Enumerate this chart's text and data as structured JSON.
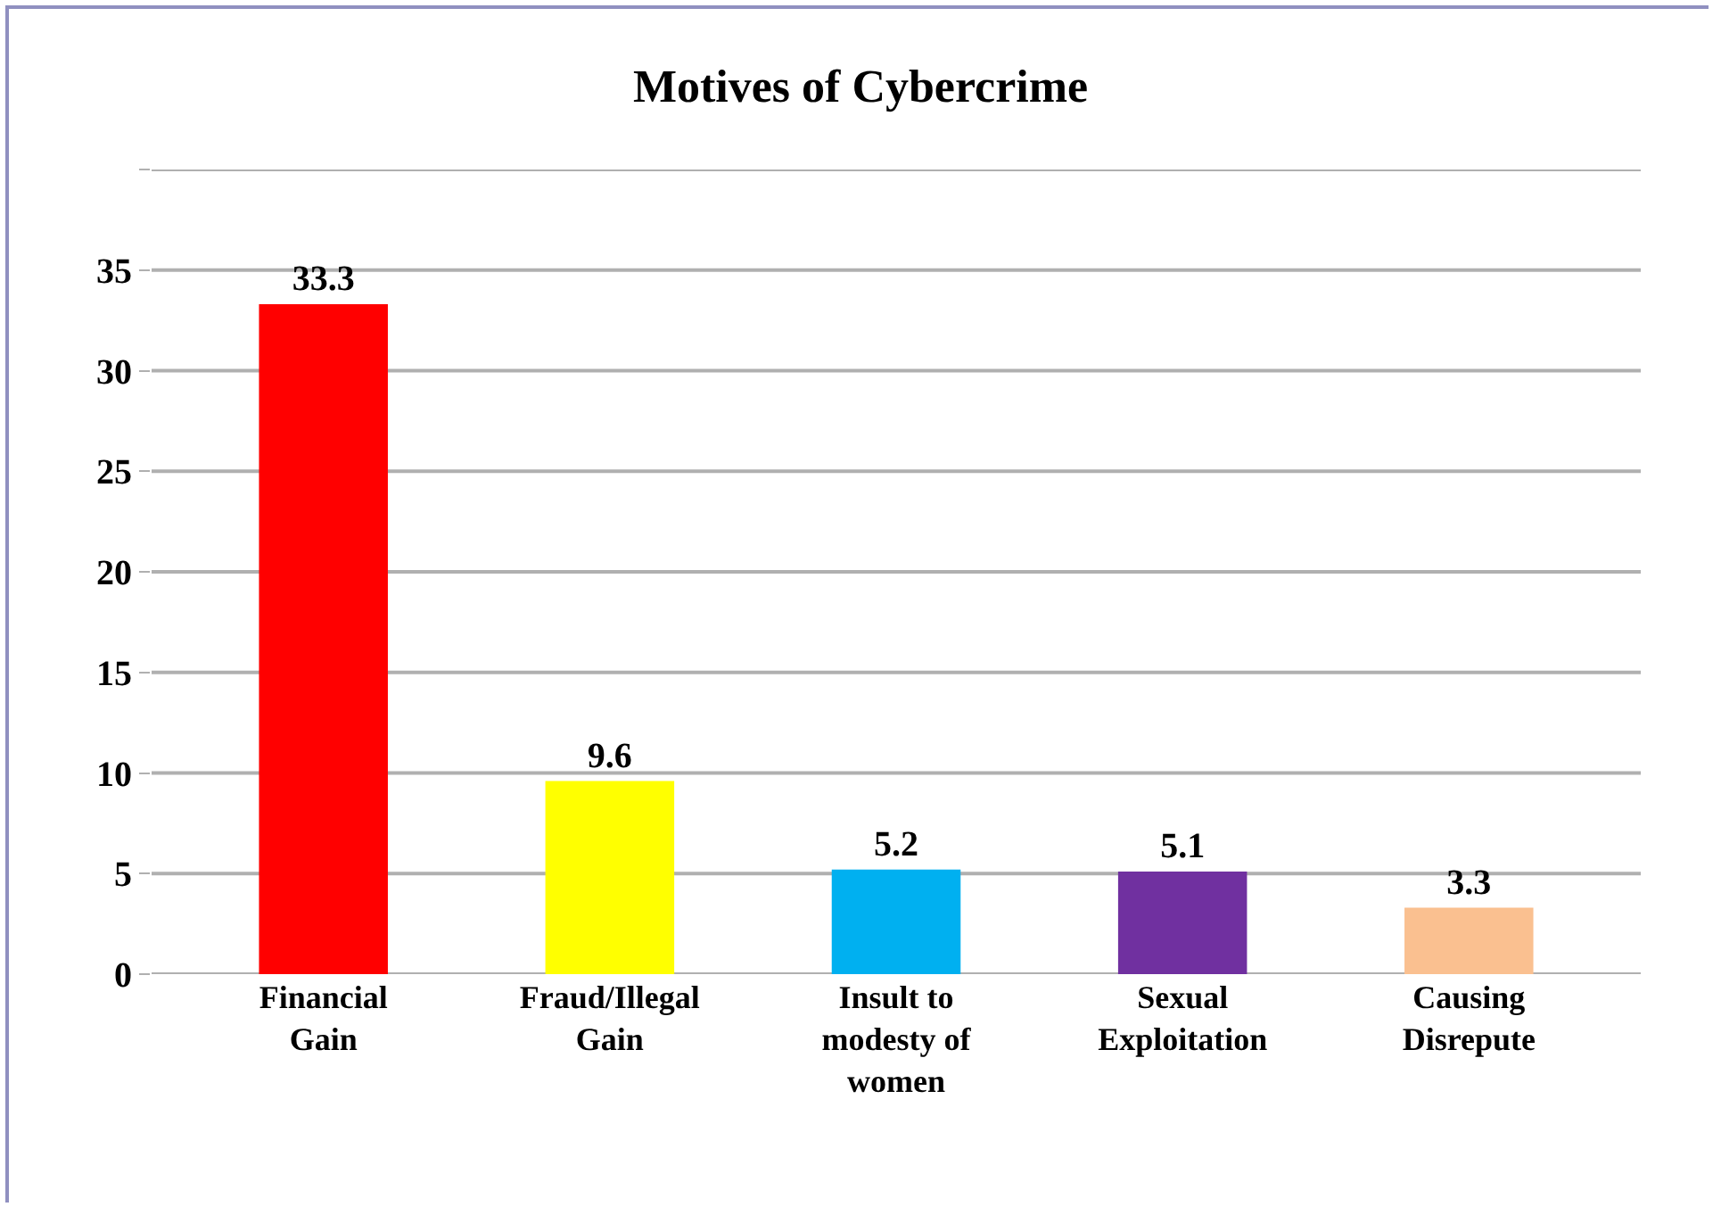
{
  "chart_data": {
    "type": "bar",
    "title": "Motives of Cybercrime",
    "categories": [
      "Financial Gain",
      "Fraud/Illegal Gain",
      "Insult to modesty of women",
      "Sexual Exploitation",
      "Causing Disrepute"
    ],
    "values": [
      33.3,
      9.6,
      5.2,
      5.1,
      3.3
    ],
    "colors": [
      "#ff0000",
      "#ffff00",
      "#00b0f0",
      "#7030a0",
      "#fac090"
    ],
    "ylim": [
      0,
      40
    ],
    "yticks": [
      0,
      5,
      10,
      15,
      20,
      25,
      30,
      35,
      {
        "value": 40,
        "label": null
      }
    ],
    "grid": "y",
    "data_labels": true
  }
}
